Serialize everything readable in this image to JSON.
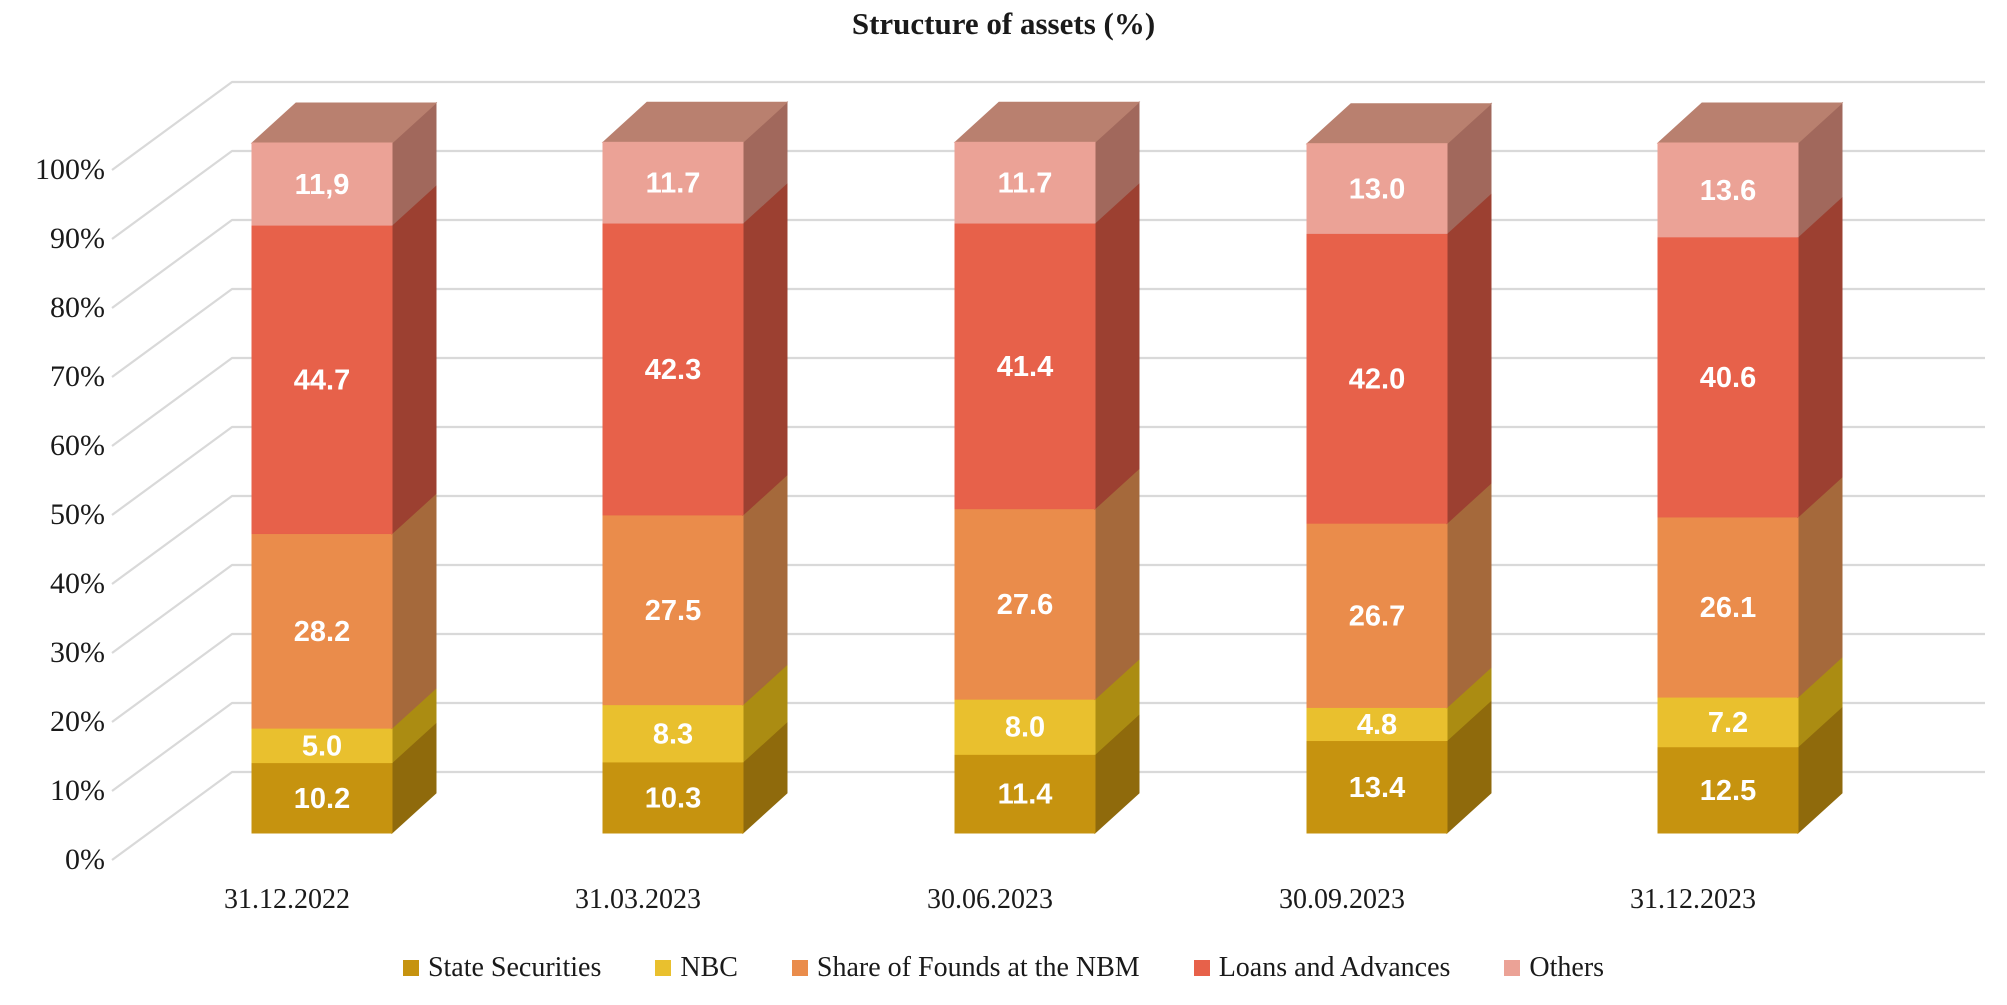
{
  "title": "Structure of assets (%)",
  "chart_data": {
    "type": "bar",
    "stacked": true,
    "projection": "3d",
    "title": "Structure of assets (%)",
    "categories": [
      "31.12.2022",
      "31.03.2023",
      "30.06.2023",
      "30.09.2023",
      "31.12.2023"
    ],
    "series": [
      {
        "name": "State Securities",
        "values": [
          10.2,
          10.3,
          11.4,
          13.4,
          12.5
        ],
        "labels": [
          "10.2",
          "10.3",
          "11.4",
          "13.4",
          "12.5"
        ],
        "color": "#C6930F",
        "side_color": "#8F6A0C"
      },
      {
        "name": "NBC",
        "values": [
          5.0,
          8.3,
          8.0,
          4.8,
          7.2
        ],
        "labels": [
          "5.0",
          "8.3",
          "8.0",
          "4.8",
          "7.2"
        ],
        "color": "#E9C02E",
        "side_color": "#AB8C12"
      },
      {
        "name": "Share of Founds at the NBM",
        "values": [
          28.2,
          27.5,
          27.6,
          26.7,
          26.1
        ],
        "labels": [
          "28.2",
          "27.5",
          "27.6",
          "26.7",
          "26.1"
        ],
        "color": "#EA8C4B",
        "side_color": "#A5693B"
      },
      {
        "name": "Loans and Advances",
        "values": [
          44.7,
          42.3,
          41.4,
          42.0,
          40.6
        ],
        "labels": [
          "44.7",
          "42.3",
          "41.4",
          "42.0",
          "40.6"
        ],
        "color": "#E7614A",
        "side_color": "#9C4031"
      },
      {
        "name": "Others",
        "values": [
          11.9,
          11.7,
          11.7,
          13.0,
          13.6
        ],
        "labels": [
          "11,9",
          "11.7",
          "11.7",
          "13.0",
          "13.6"
        ],
        "color": "#EBA296",
        "side_color": "#A1685C",
        "top_color": "#B9806F"
      }
    ],
    "y_ticks": [
      "0%",
      "10%",
      "20%",
      "30%",
      "40%",
      "50%",
      "60%",
      "70%",
      "80%",
      "90%",
      "100%"
    ],
    "ylim": [
      0,
      100
    ],
    "grid": true,
    "gridline_color": "#D9D9D9",
    "legend_position": "bottom",
    "data_label_color": "#FFFFFF",
    "text_color": "#1A1A1A"
  }
}
